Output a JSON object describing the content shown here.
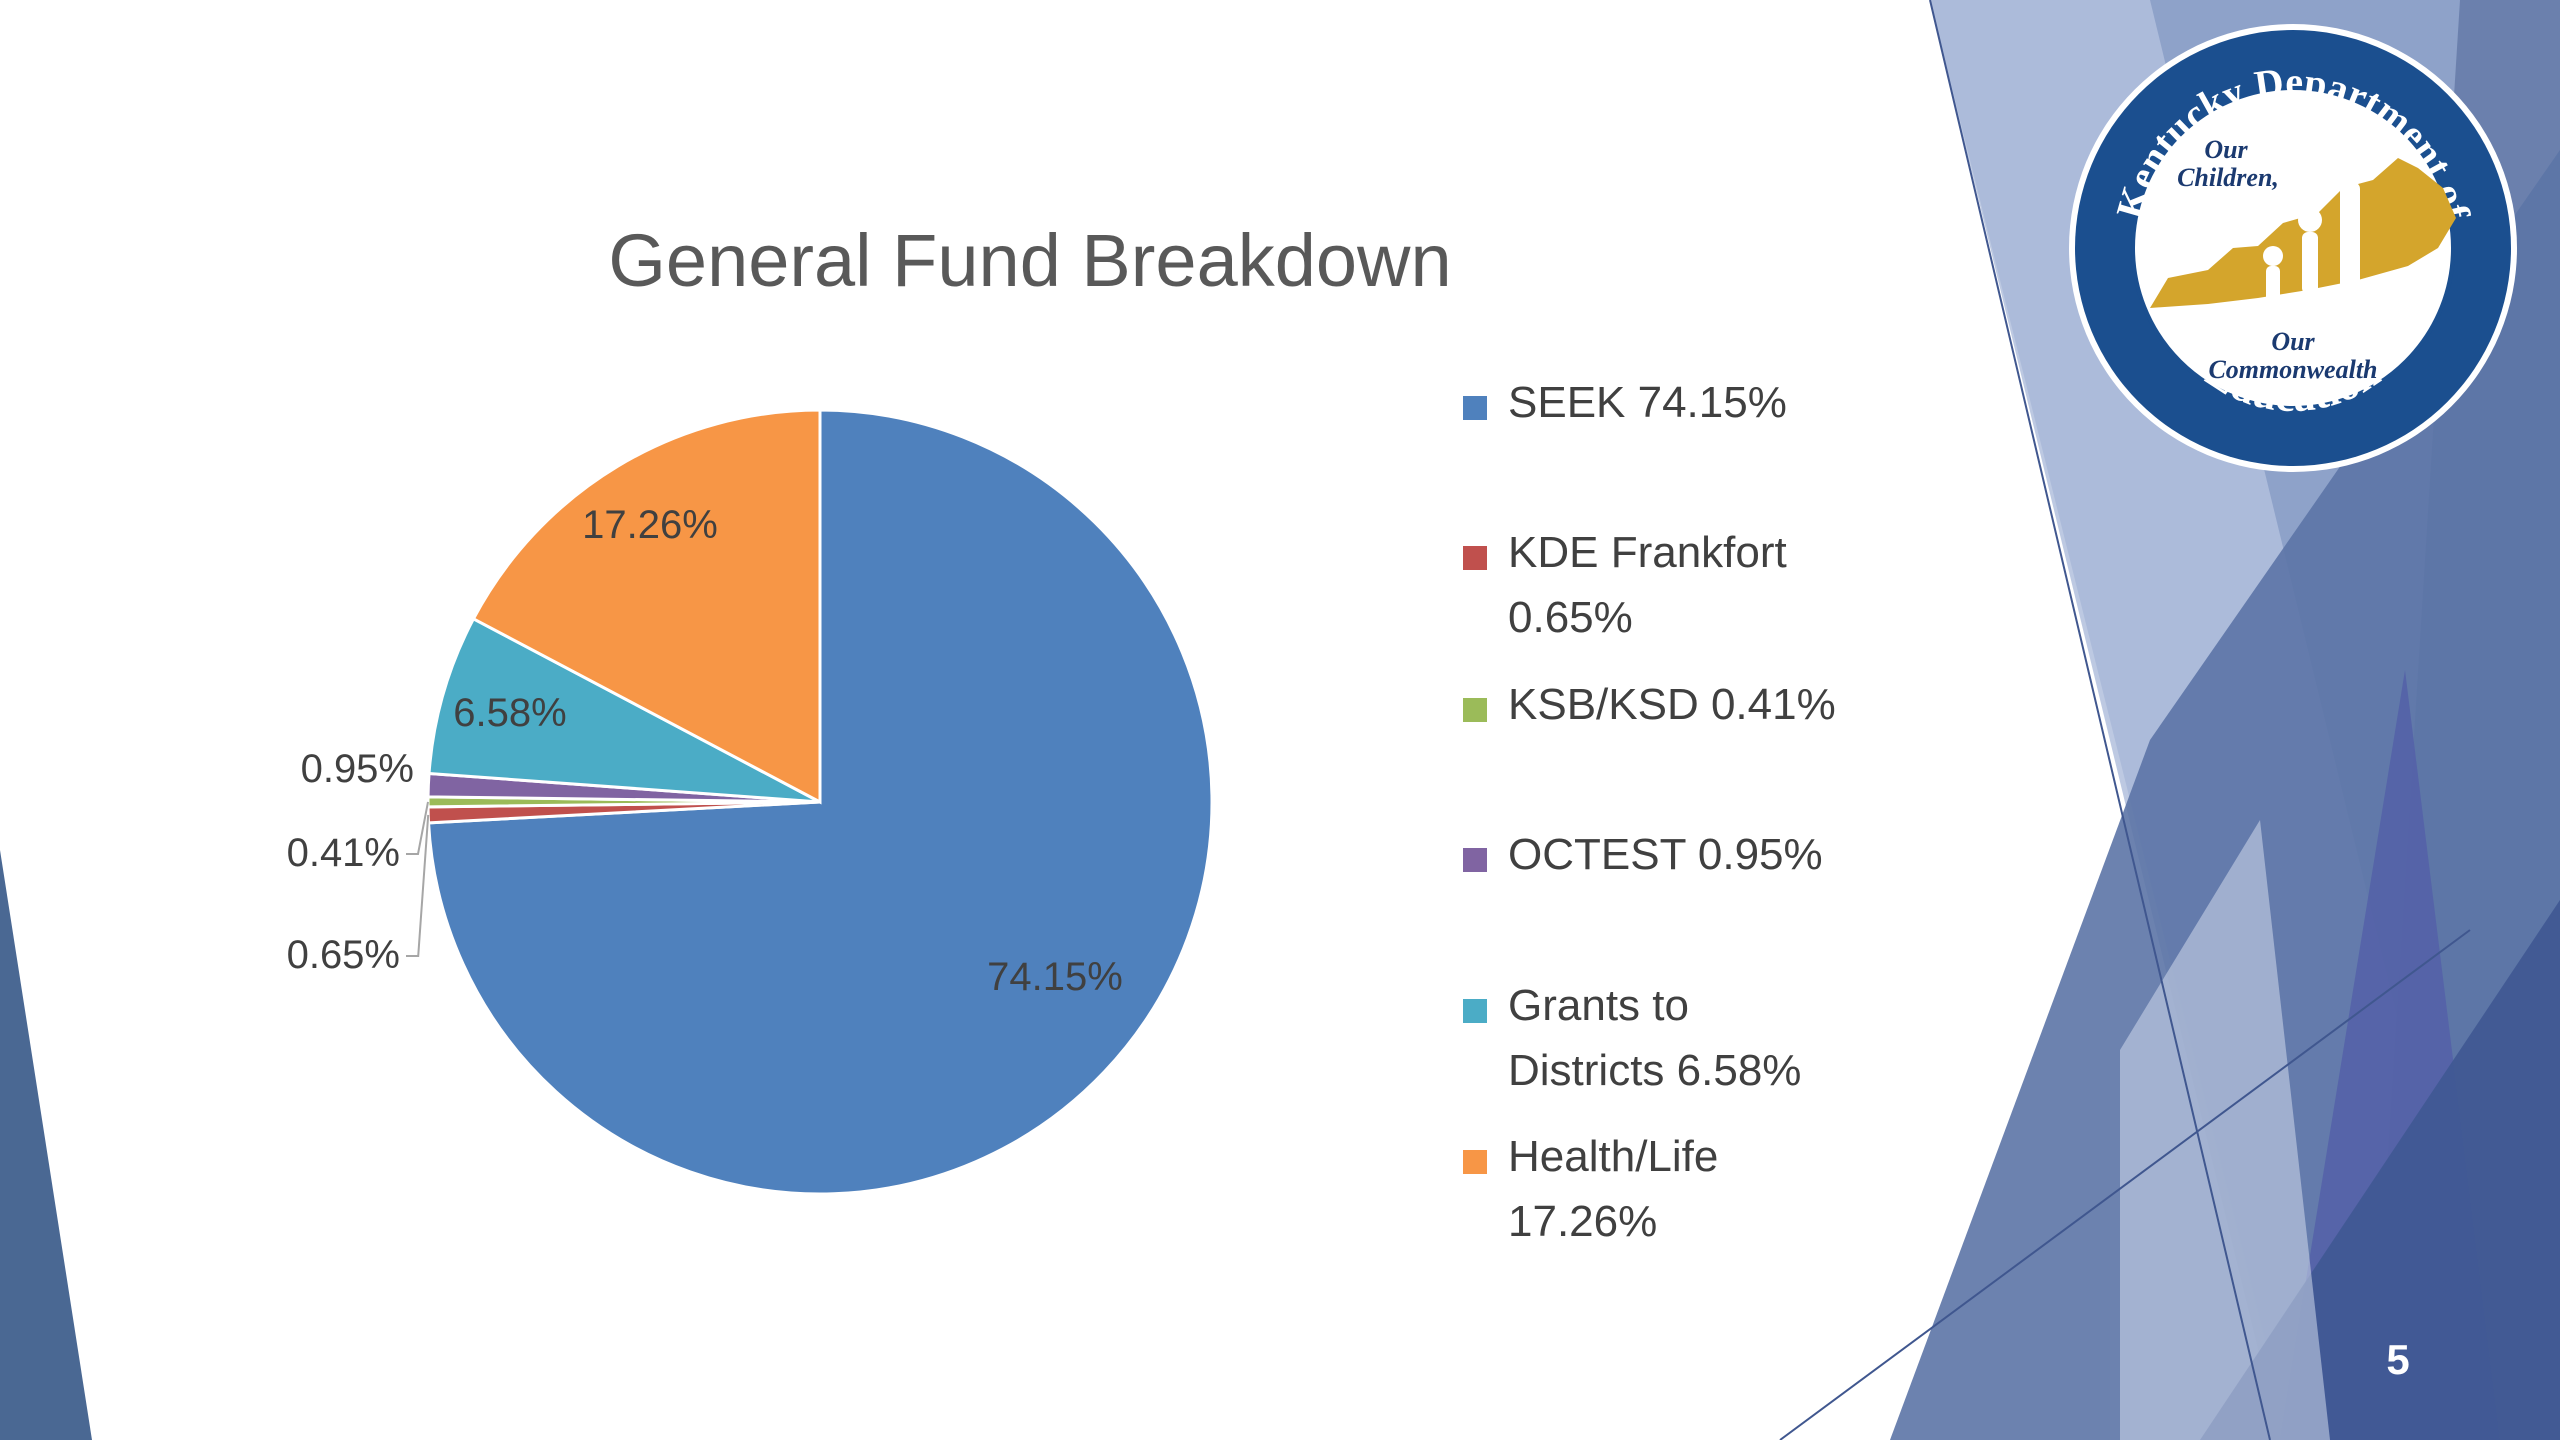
{
  "slide": {
    "page_number": "5"
  },
  "logo": {
    "top_text": "Kentucky Department of",
    "bottom_text": "Education",
    "tag_line1": "Our",
    "tag_line2": "Children,",
    "tag_line3": "Our",
    "tag_line4": "Commonwealth",
    "ring_color": "#1b4f8f",
    "state_color": "#d4a52c"
  },
  "chart_data": {
    "type": "pie",
    "title": "General Fund Breakdown",
    "legend_position": "right",
    "slices": [
      {
        "name": "SEEK",
        "value": 74.15,
        "label": "74.15%",
        "legend": "SEEK 74.15%",
        "color": "#4f81bd"
      },
      {
        "name": "KDE Frankfort",
        "value": 0.65,
        "label": "0.65%",
        "legend": "KDE Frankfort 0.65%",
        "color": "#c0504d"
      },
      {
        "name": "KSB/KSD",
        "value": 0.41,
        "label": "0.41%",
        "legend": "KSB/KSD 0.41%",
        "color": "#9bbb59"
      },
      {
        "name": "OCTEST",
        "value": 0.95,
        "label": "0.95%",
        "legend": "OCTEST 0.95%",
        "color": "#8064a2"
      },
      {
        "name": "Grants to Districts",
        "value": 6.58,
        "label": "6.58%",
        "legend": "Grants to Districts 6.58%",
        "color": "#4bacc6"
      },
      {
        "name": "Health/Life",
        "value": 17.26,
        "label": "17.26%",
        "legend": "Health/Life 17.26%",
        "color": "#f79646"
      }
    ]
  }
}
